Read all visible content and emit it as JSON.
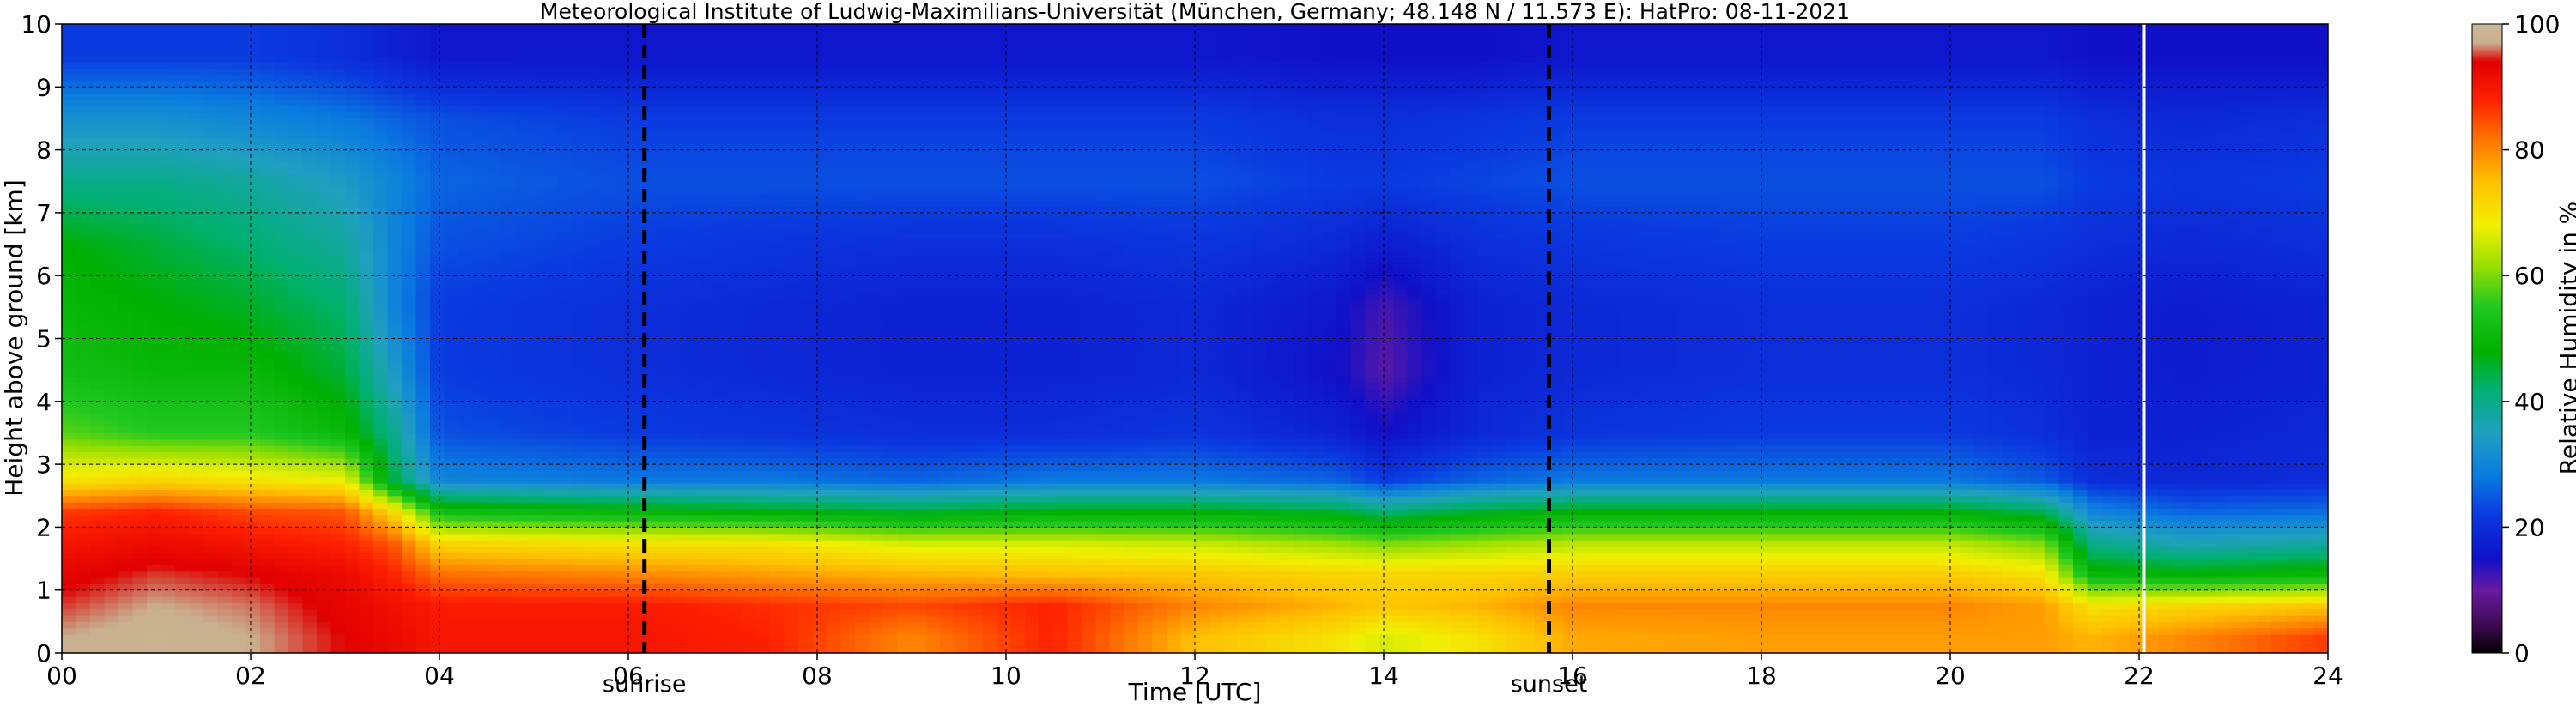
{
  "chart_data": {
    "type": "heatmap",
    "title": "Meteorological Institute of Ludwig-Maximilians-Universität (München, Germany; 48.148 N / 11.573 E):    HatPro: 08-11-2021",
    "xlabel": "Time [UTC]",
    "ylabel": "Height above ground [km]",
    "colorbar_label": "Relative Humidity in %",
    "x_range": [
      0,
      24
    ],
    "y_range": [
      0,
      10
    ],
    "x_ticks": [
      0,
      2,
      4,
      6,
      8,
      10,
      12,
      14,
      16,
      18,
      20,
      22,
      24
    ],
    "x_tick_labels": [
      "00",
      "02",
      "04",
      "06",
      "08",
      "10",
      "12",
      "14",
      "16",
      "18",
      "20",
      "22",
      "24"
    ],
    "y_ticks": [
      0,
      1,
      2,
      3,
      4,
      5,
      6,
      7,
      8,
      9,
      10
    ],
    "y_tick_labels": [
      "0",
      "1",
      "2",
      "3",
      "4",
      "5",
      "6",
      "7",
      "8",
      "9",
      "10"
    ],
    "colorbar_range": [
      0,
      100
    ],
    "colorbar_ticks": [
      0,
      20,
      40,
      60,
      80,
      100
    ],
    "colorbar_tick_labels": [
      "0",
      "20",
      "40",
      "60",
      "80",
      "100"
    ],
    "grid": true,
    "colormap_stops": [
      {
        "v": 0,
        "c": "#000000"
      },
      {
        "v": 4,
        "c": "#3a0a4a"
      },
      {
        "v": 10,
        "c": "#6a1aa0"
      },
      {
        "v": 15,
        "c": "#1010c8"
      },
      {
        "v": 22,
        "c": "#0a3ae0"
      },
      {
        "v": 28,
        "c": "#0a7ae0"
      },
      {
        "v": 35,
        "c": "#20a0c0"
      },
      {
        "v": 42,
        "c": "#00b070"
      },
      {
        "v": 48,
        "c": "#00b000"
      },
      {
        "v": 55,
        "c": "#20c820"
      },
      {
        "v": 62,
        "c": "#a0e000"
      },
      {
        "v": 68,
        "c": "#f0f000"
      },
      {
        "v": 75,
        "c": "#ffc000"
      },
      {
        "v": 82,
        "c": "#ff7000"
      },
      {
        "v": 88,
        "c": "#ff2000"
      },
      {
        "v": 94,
        "c": "#e00000"
      },
      {
        "v": 97,
        "c": "#c8b090"
      },
      {
        "v": 100,
        "c": "#c8b898"
      }
    ],
    "events": [
      {
        "label": "sunrise",
        "time": 6.17
      },
      {
        "label": "sunset",
        "time": 15.75
      }
    ],
    "gap_time": 22.05,
    "height_levels_km": [
      0.25,
      0.75,
      1.25,
      1.75,
      2.25,
      2.75,
      3.5,
      4.5,
      5.5,
      6.5,
      7.5,
      8.5,
      9.5
    ],
    "time_series": [
      {
        "t": 0.0,
        "rh": [
          97,
          95,
          93,
          90,
          86,
          70,
          58,
          52,
          50,
          48,
          40,
          32,
          22
        ]
      },
      {
        "t": 1.0,
        "rh": [
          98,
          97,
          95,
          92,
          88,
          72,
          55,
          50,
          48,
          45,
          40,
          32,
          22
        ]
      },
      {
        "t": 2.0,
        "rh": [
          97,
          96,
          94,
          90,
          85,
          70,
          55,
          50,
          46,
          42,
          38,
          30,
          22
        ]
      },
      {
        "t": 3.0,
        "rh": [
          94,
          93,
          92,
          88,
          84,
          68,
          50,
          45,
          42,
          38,
          34,
          28,
          20
        ]
      },
      {
        "t": 3.5,
        "rh": [
          92,
          91,
          88,
          84,
          72,
          45,
          40,
          34,
          30,
          30,
          30,
          26,
          18
        ]
      },
      {
        "t": 4.0,
        "rh": [
          90,
          89,
          82,
          72,
          52,
          30,
          24,
          22,
          22,
          24,
          26,
          24,
          16
        ]
      },
      {
        "t": 6.0,
        "rh": [
          90,
          89,
          80,
          70,
          50,
          28,
          22,
          20,
          20,
          22,
          24,
          22,
          16
        ]
      },
      {
        "t": 7.5,
        "rh": [
          88,
          87,
          78,
          70,
          48,
          28,
          21,
          19,
          19,
          21,
          24,
          22,
          16
        ]
      },
      {
        "t": 9.0,
        "rh": [
          80,
          85,
          76,
          66,
          46,
          26,
          20,
          18,
          18,
          20,
          24,
          22,
          16
        ]
      },
      {
        "t": 10.5,
        "rh": [
          88,
          88,
          75,
          66,
          48,
          28,
          20,
          18,
          18,
          20,
          24,
          22,
          16
        ]
      },
      {
        "t": 12.0,
        "rh": [
          75,
          80,
          74,
          65,
          48,
          28,
          21,
          19,
          19,
          21,
          24,
          22,
          16
        ]
      },
      {
        "t": 13.5,
        "rh": [
          70,
          76,
          72,
          62,
          46,
          26,
          18,
          15,
          16,
          19,
          22,
          20,
          15
        ]
      },
      {
        "t": 14.0,
        "rh": [
          66,
          74,
          72,
          60,
          42,
          22,
          15,
          11,
          12,
          17,
          22,
          20,
          15
        ]
      },
      {
        "t": 15.0,
        "rh": [
          70,
          76,
          72,
          62,
          46,
          26,
          19,
          18,
          18,
          20,
          23,
          21,
          15
        ]
      },
      {
        "t": 16.0,
        "rh": [
          77,
          80,
          73,
          64,
          48,
          28,
          21,
          19,
          19,
          21,
          24,
          22,
          16
        ]
      },
      {
        "t": 18.0,
        "rh": [
          78,
          80,
          73,
          64,
          48,
          28,
          22,
          20,
          20,
          22,
          24,
          22,
          16
        ]
      },
      {
        "t": 20.0,
        "rh": [
          78,
          80,
          73,
          64,
          48,
          28,
          22,
          20,
          20,
          22,
          24,
          22,
          16
        ]
      },
      {
        "t": 21.0,
        "rh": [
          78,
          78,
          70,
          60,
          44,
          25,
          20,
          19,
          19,
          21,
          24,
          22,
          16
        ]
      },
      {
        "t": 21.5,
        "rh": [
          76,
          70,
          50,
          40,
          30,
          20,
          18,
          18,
          18,
          20,
          22,
          20,
          15
        ]
      },
      {
        "t": 22.5,
        "rh": [
          80,
          72,
          48,
          36,
          26,
          19,
          18,
          17,
          17,
          19,
          21,
          19,
          15
        ]
      },
      {
        "t": 24.0,
        "rh": [
          86,
          74,
          50,
          38,
          27,
          20,
          19,
          18,
          18,
          20,
          22,
          20,
          15
        ]
      }
    ],
    "annotation_labels": {
      "sunrise": "sunrise",
      "sunset": "sunset"
    }
  }
}
